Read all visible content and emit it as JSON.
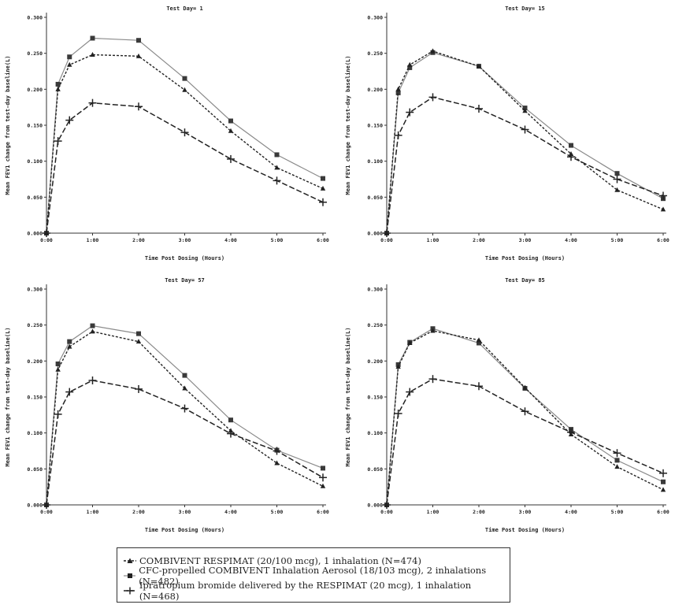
{
  "chart_data": [
    {
      "type": "line",
      "title": "Test Day=  1",
      "xlabel": "Time Post Dosing (Hours)",
      "ylabel": "Mean FEV1 change from test-day baseline(L)",
      "ylim": [
        0,
        0.3
      ],
      "x": [
        0,
        0.25,
        0.5,
        1,
        2,
        3,
        4,
        5,
        6
      ],
      "xticks": [
        "0:00",
        "1:00",
        "2:00",
        "3:00",
        "4:00",
        "5:00",
        "6:00"
      ],
      "yticks": [
        "0.000",
        "0.050",
        "0.100",
        "0.150",
        "0.200",
        "0.250",
        "0.300"
      ],
      "series": [
        {
          "name": "COMBIVENT RESPIMAT (20/100 mcg), 1 inhalation (N=474)",
          "values": [
            0,
            0.2,
            0.234,
            0.248,
            0.246,
            0.199,
            0.142,
            0.091,
            0.062
          ]
        },
        {
          "name": "CFC-propelled COMBIVENT Inhalation Aerosol (18/103 mcg), 2 inhalations (N=482)",
          "values": [
            0,
            0.207,
            0.245,
            0.271,
            0.268,
            0.215,
            0.156,
            0.109,
            0.076
          ]
        },
        {
          "name": "Ipratropium bromide delivered by the RESPIMAT (20 mcg), 1 inhalation (N=468)",
          "values": [
            0,
            0.128,
            0.157,
            0.181,
            0.176,
            0.14,
            0.103,
            0.073,
            0.043
          ]
        }
      ]
    },
    {
      "type": "line",
      "title": "Test Day=  15",
      "xlabel": "Time Post Dosing (Hours)",
      "ylabel": "Mean FEV1 change from test-day baseline(L)",
      "ylim": [
        0,
        0.3
      ],
      "x": [
        0,
        0.25,
        0.5,
        1,
        2,
        3,
        4,
        5,
        6
      ],
      "xticks": [
        "0:00",
        "1:00",
        "2:00",
        "3:00",
        "4:00",
        "5:00",
        "6:00"
      ],
      "yticks": [
        "0.000",
        "0.050",
        "0.100",
        "0.150",
        "0.200",
        "0.250",
        "0.300"
      ],
      "series": [
        {
          "name": "COMBIVENT RESPIMAT (20/100 mcg), 1 inhalation (N=474)",
          "values": [
            0,
            0.2,
            0.234,
            0.253,
            0.232,
            0.17,
            0.11,
            0.06,
            0.033
          ]
        },
        {
          "name": "CFC-propelled COMBIVENT Inhalation Aerosol (18/103 mcg), 2 inhalations (N=482)",
          "values": [
            0,
            0.195,
            0.23,
            0.251,
            0.232,
            0.174,
            0.122,
            0.083,
            0.048
          ]
        },
        {
          "name": "Ipratropium bromide delivered by the RESPIMAT (20 mcg), 1 inhalation (N=468)",
          "values": [
            0,
            0.136,
            0.168,
            0.189,
            0.173,
            0.144,
            0.106,
            0.075,
            0.052
          ]
        }
      ]
    },
    {
      "type": "line",
      "title": "Test Day=  57",
      "xlabel": "Time Post Dosing (Hours)",
      "ylabel": "Mean FEV1 change from test-day baseline(L)",
      "ylim": [
        0,
        0.3
      ],
      "x": [
        0,
        0.25,
        0.5,
        1,
        2,
        3,
        4,
        5,
        6
      ],
      "xticks": [
        "0:00",
        "1:00",
        "2:00",
        "3:00",
        "4:00",
        "5:00",
        "6:00"
      ],
      "yticks": [
        "0.000",
        "0.050",
        "0.100",
        "0.150",
        "0.200",
        "0.250",
        "0.300"
      ],
      "series": [
        {
          "name": "COMBIVENT RESPIMAT (20/100 mcg), 1 inhalation (N=474)",
          "values": [
            0,
            0.188,
            0.22,
            0.241,
            0.227,
            0.162,
            0.103,
            0.058,
            0.026
          ]
        },
        {
          "name": "CFC-propelled COMBIVENT Inhalation Aerosol (18/103 mcg), 2 inhalations (N=482)",
          "values": [
            0,
            0.196,
            0.227,
            0.249,
            0.238,
            0.18,
            0.118,
            0.076,
            0.051
          ]
        },
        {
          "name": "Ipratropium bromide delivered by the RESPIMAT (20 mcg), 1 inhalation (N=468)",
          "values": [
            0,
            0.126,
            0.157,
            0.173,
            0.161,
            0.134,
            0.099,
            0.075,
            0.038
          ]
        }
      ]
    },
    {
      "type": "line",
      "title": "Test Day=  85",
      "xlabel": "Time Post Dosing (Hours)",
      "ylabel": "Mean FEV1 change from test-day baseline(L)",
      "ylim": [
        0,
        0.3
      ],
      "x": [
        0,
        0.25,
        0.5,
        1,
        2,
        3,
        4,
        5,
        6
      ],
      "xticks": [
        "0:00",
        "1:00",
        "2:00",
        "3:00",
        "4:00",
        "5:00",
        "6:00"
      ],
      "yticks": [
        "0.000",
        "0.050",
        "0.100",
        "0.150",
        "0.200",
        "0.250",
        "0.300"
      ],
      "series": [
        {
          "name": "COMBIVENT RESPIMAT (20/100 mcg), 1 inhalation (N=474)",
          "values": [
            0,
            0.192,
            0.225,
            0.242,
            0.229,
            0.163,
            0.098,
            0.053,
            0.021
          ]
        },
        {
          "name": "CFC-propelled COMBIVENT Inhalation Aerosol (18/103 mcg), 2 inhalations (N=482)",
          "values": [
            0,
            0.195,
            0.226,
            0.245,
            0.225,
            0.162,
            0.105,
            0.062,
            0.032
          ]
        },
        {
          "name": "Ipratropium bromide delivered by the RESPIMAT (20 mcg), 1 inhalation (N=468)",
          "values": [
            0,
            0.127,
            0.157,
            0.175,
            0.165,
            0.13,
            0.101,
            0.072,
            0.044
          ]
        }
      ]
    }
  ],
  "legend": {
    "items": [
      {
        "label": "COMBIVENT RESPIMAT (20/100 mcg), 1 inhalation (N=474)",
        "marker": "triangle",
        "dash": "dashed"
      },
      {
        "label": "CFC-propelled COMBIVENT Inhalation Aerosol (18/103 mcg), 2 inhalations (N=482)",
        "marker": "square",
        "dash": "solid"
      },
      {
        "label": "Ipratropium bromide delivered by the RESPIMAT (20 mcg), 1 inhalation (N=468)",
        "marker": "plus",
        "dash": "long-dash"
      }
    ]
  },
  "colors": {
    "line_dark": "#222222",
    "line_light": "#8a8a8a",
    "axis": "#333333"
  }
}
